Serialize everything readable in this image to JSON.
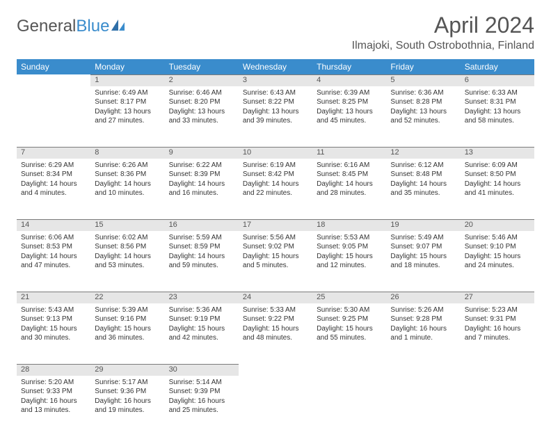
{
  "logo": {
    "text1": "General",
    "text2": "Blue"
  },
  "title": "April 2024",
  "location": "Ilmajoki, South Ostrobothnia, Finland",
  "colors": {
    "header_bg": "#3a8ccc",
    "header_text": "#ffffff",
    "daynum_bg": "#e6e6e6",
    "daynum_border": "#7a7a7a",
    "body_text": "#333333",
    "title_text": "#555555"
  },
  "fonts": {
    "title_size_pt": 24,
    "location_size_pt": 12,
    "dayheader_size_pt": 9,
    "cell_size_pt": 7.5
  },
  "day_headers": [
    "Sunday",
    "Monday",
    "Tuesday",
    "Wednesday",
    "Thursday",
    "Friday",
    "Saturday"
  ],
  "weeks": [
    {
      "nums": [
        "",
        "1",
        "2",
        "3",
        "4",
        "5",
        "6"
      ],
      "cells": [
        {
          "empty": true
        },
        {
          "sunrise": "Sunrise: 6:49 AM",
          "sunset": "Sunset: 8:17 PM",
          "day1": "Daylight: 13 hours",
          "day2": "and 27 minutes."
        },
        {
          "sunrise": "Sunrise: 6:46 AM",
          "sunset": "Sunset: 8:20 PM",
          "day1": "Daylight: 13 hours",
          "day2": "and 33 minutes."
        },
        {
          "sunrise": "Sunrise: 6:43 AM",
          "sunset": "Sunset: 8:22 PM",
          "day1": "Daylight: 13 hours",
          "day2": "and 39 minutes."
        },
        {
          "sunrise": "Sunrise: 6:39 AM",
          "sunset": "Sunset: 8:25 PM",
          "day1": "Daylight: 13 hours",
          "day2": "and 45 minutes."
        },
        {
          "sunrise": "Sunrise: 6:36 AM",
          "sunset": "Sunset: 8:28 PM",
          "day1": "Daylight: 13 hours",
          "day2": "and 52 minutes."
        },
        {
          "sunrise": "Sunrise: 6:33 AM",
          "sunset": "Sunset: 8:31 PM",
          "day1": "Daylight: 13 hours",
          "day2": "and 58 minutes."
        }
      ]
    },
    {
      "nums": [
        "7",
        "8",
        "9",
        "10",
        "11",
        "12",
        "13"
      ],
      "cells": [
        {
          "sunrise": "Sunrise: 6:29 AM",
          "sunset": "Sunset: 8:34 PM",
          "day1": "Daylight: 14 hours",
          "day2": "and 4 minutes."
        },
        {
          "sunrise": "Sunrise: 6:26 AM",
          "sunset": "Sunset: 8:36 PM",
          "day1": "Daylight: 14 hours",
          "day2": "and 10 minutes."
        },
        {
          "sunrise": "Sunrise: 6:22 AM",
          "sunset": "Sunset: 8:39 PM",
          "day1": "Daylight: 14 hours",
          "day2": "and 16 minutes."
        },
        {
          "sunrise": "Sunrise: 6:19 AM",
          "sunset": "Sunset: 8:42 PM",
          "day1": "Daylight: 14 hours",
          "day2": "and 22 minutes."
        },
        {
          "sunrise": "Sunrise: 6:16 AM",
          "sunset": "Sunset: 8:45 PM",
          "day1": "Daylight: 14 hours",
          "day2": "and 28 minutes."
        },
        {
          "sunrise": "Sunrise: 6:12 AM",
          "sunset": "Sunset: 8:48 PM",
          "day1": "Daylight: 14 hours",
          "day2": "and 35 minutes."
        },
        {
          "sunrise": "Sunrise: 6:09 AM",
          "sunset": "Sunset: 8:50 PM",
          "day1": "Daylight: 14 hours",
          "day2": "and 41 minutes."
        }
      ]
    },
    {
      "nums": [
        "14",
        "15",
        "16",
        "17",
        "18",
        "19",
        "20"
      ],
      "cells": [
        {
          "sunrise": "Sunrise: 6:06 AM",
          "sunset": "Sunset: 8:53 PM",
          "day1": "Daylight: 14 hours",
          "day2": "and 47 minutes."
        },
        {
          "sunrise": "Sunrise: 6:02 AM",
          "sunset": "Sunset: 8:56 PM",
          "day1": "Daylight: 14 hours",
          "day2": "and 53 minutes."
        },
        {
          "sunrise": "Sunrise: 5:59 AM",
          "sunset": "Sunset: 8:59 PM",
          "day1": "Daylight: 14 hours",
          "day2": "and 59 minutes."
        },
        {
          "sunrise": "Sunrise: 5:56 AM",
          "sunset": "Sunset: 9:02 PM",
          "day1": "Daylight: 15 hours",
          "day2": "and 5 minutes."
        },
        {
          "sunrise": "Sunrise: 5:53 AM",
          "sunset": "Sunset: 9:05 PM",
          "day1": "Daylight: 15 hours",
          "day2": "and 12 minutes."
        },
        {
          "sunrise": "Sunrise: 5:49 AM",
          "sunset": "Sunset: 9:07 PM",
          "day1": "Daylight: 15 hours",
          "day2": "and 18 minutes."
        },
        {
          "sunrise": "Sunrise: 5:46 AM",
          "sunset": "Sunset: 9:10 PM",
          "day1": "Daylight: 15 hours",
          "day2": "and 24 minutes."
        }
      ]
    },
    {
      "nums": [
        "21",
        "22",
        "23",
        "24",
        "25",
        "26",
        "27"
      ],
      "cells": [
        {
          "sunrise": "Sunrise: 5:43 AM",
          "sunset": "Sunset: 9:13 PM",
          "day1": "Daylight: 15 hours",
          "day2": "and 30 minutes."
        },
        {
          "sunrise": "Sunrise: 5:39 AM",
          "sunset": "Sunset: 9:16 PM",
          "day1": "Daylight: 15 hours",
          "day2": "and 36 minutes."
        },
        {
          "sunrise": "Sunrise: 5:36 AM",
          "sunset": "Sunset: 9:19 PM",
          "day1": "Daylight: 15 hours",
          "day2": "and 42 minutes."
        },
        {
          "sunrise": "Sunrise: 5:33 AM",
          "sunset": "Sunset: 9:22 PM",
          "day1": "Daylight: 15 hours",
          "day2": "and 48 minutes."
        },
        {
          "sunrise": "Sunrise: 5:30 AM",
          "sunset": "Sunset: 9:25 PM",
          "day1": "Daylight: 15 hours",
          "day2": "and 55 minutes."
        },
        {
          "sunrise": "Sunrise: 5:26 AM",
          "sunset": "Sunset: 9:28 PM",
          "day1": "Daylight: 16 hours",
          "day2": "and 1 minute."
        },
        {
          "sunrise": "Sunrise: 5:23 AM",
          "sunset": "Sunset: 9:31 PM",
          "day1": "Daylight: 16 hours",
          "day2": "and 7 minutes."
        }
      ]
    },
    {
      "nums": [
        "28",
        "29",
        "30",
        "",
        "",
        "",
        ""
      ],
      "cells": [
        {
          "sunrise": "Sunrise: 5:20 AM",
          "sunset": "Sunset: 9:33 PM",
          "day1": "Daylight: 16 hours",
          "day2": "and 13 minutes."
        },
        {
          "sunrise": "Sunrise: 5:17 AM",
          "sunset": "Sunset: 9:36 PM",
          "day1": "Daylight: 16 hours",
          "day2": "and 19 minutes."
        },
        {
          "sunrise": "Sunrise: 5:14 AM",
          "sunset": "Sunset: 9:39 PM",
          "day1": "Daylight: 16 hours",
          "day2": "and 25 minutes."
        },
        {
          "empty": true
        },
        {
          "empty": true
        },
        {
          "empty": true
        },
        {
          "empty": true
        }
      ]
    }
  ]
}
